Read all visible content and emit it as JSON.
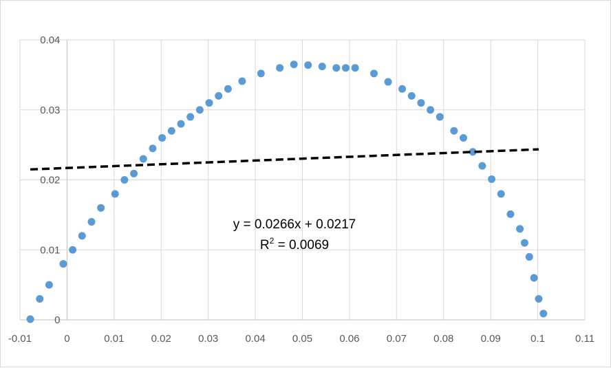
{
  "chart_data": {
    "type": "scatter",
    "xlim": [
      -0.01,
      0.11
    ],
    "ylim": [
      0,
      0.04
    ],
    "x_ticks": [
      "-0.01",
      "0",
      "0.01",
      "0.02",
      "0.03",
      "0.04",
      "0.05",
      "0.06",
      "0.07",
      "0.08",
      "0.09",
      "0.1",
      "0.11"
    ],
    "y_ticks": [
      "0",
      "0.01",
      "0.02",
      "0.03",
      "0.04"
    ],
    "grid": true,
    "colors": {
      "points": "#5b9bd5",
      "trendline": "#000000",
      "grid": "#d9d9d9",
      "axis": "#bfbfbf"
    },
    "series": [
      {
        "points": [
          [
            -0.0078,
            0.0001
          ],
          [
            -0.0058,
            0.003
          ],
          [
            -0.0038,
            0.005
          ],
          [
            -0.0008,
            0.008
          ],
          [
            0.0012,
            0.01
          ],
          [
            0.0032,
            0.012
          ],
          [
            0.0052,
            0.014
          ],
          [
            0.0072,
            0.016
          ],
          [
            0.0102,
            0.018
          ],
          [
            0.0122,
            0.02
          ],
          [
            0.0142,
            0.0209
          ],
          [
            0.0162,
            0.023
          ],
          [
            0.0182,
            0.0245
          ],
          [
            0.0202,
            0.026
          ],
          [
            0.0222,
            0.027
          ],
          [
            0.0242,
            0.028
          ],
          [
            0.0262,
            0.029
          ],
          [
            0.0282,
            0.03
          ],
          [
            0.0302,
            0.031
          ],
          [
            0.0322,
            0.032
          ],
          [
            0.0342,
            0.033
          ],
          [
            0.0372,
            0.0341
          ],
          [
            0.0412,
            0.0352
          ],
          [
            0.0452,
            0.036
          ],
          [
            0.0482,
            0.0365
          ],
          [
            0.0512,
            0.0364
          ],
          [
            0.0542,
            0.0362
          ],
          [
            0.0572,
            0.036
          ],
          [
            0.0592,
            0.036
          ],
          [
            0.0612,
            0.036
          ],
          [
            0.0652,
            0.0352
          ],
          [
            0.0682,
            0.034
          ],
          [
            0.0712,
            0.033
          ],
          [
            0.0732,
            0.032
          ],
          [
            0.0752,
            0.031
          ],
          [
            0.0772,
            0.03
          ],
          [
            0.0792,
            0.029
          ],
          [
            0.0822,
            0.027
          ],
          [
            0.0842,
            0.026
          ],
          [
            0.0862,
            0.024
          ],
          [
            0.0882,
            0.022
          ],
          [
            0.0902,
            0.0201
          ],
          [
            0.0922,
            0.018
          ],
          [
            0.0942,
            0.0151
          ],
          [
            0.0962,
            0.013
          ],
          [
            0.0972,
            0.011
          ],
          [
            0.0982,
            0.009
          ],
          [
            0.0992,
            0.006
          ],
          [
            0.1002,
            0.003
          ],
          [
            0.1012,
            0.0009
          ]
        ]
      }
    ],
    "trendline": {
      "type": "linear",
      "slope": 0.0266,
      "intercept": 0.0217,
      "x_range": [
        -0.0078,
        0.1002
      ],
      "style": "dashed",
      "equation": "y = 0.0266x + 0.0217",
      "r2_label": "R",
      "r2_sup": "2",
      "r2_value": " = 0.0069"
    }
  }
}
